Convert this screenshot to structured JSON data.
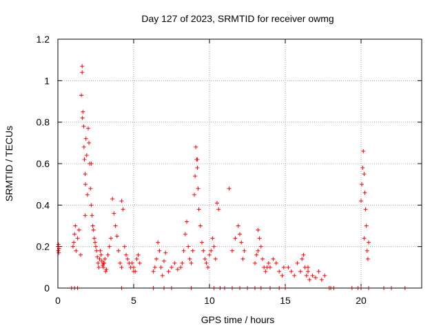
{
  "chart_data": {
    "type": "scatter",
    "title": "Day 127 of 2023, SRMTID for receiver owmg",
    "xlabel": "GPS time / hours",
    "ylabel": "SRMTID / TECUs",
    "xlim": [
      0,
      24
    ],
    "ylim": [
      0,
      1.2
    ],
    "xticks": [
      0,
      5,
      10,
      15,
      20
    ],
    "xtick_labels": [
      "0",
      "5",
      "10",
      "15",
      "20"
    ],
    "yticks": [
      0,
      0.2,
      0.4,
      0.6,
      0.8,
      1.0,
      1.2
    ],
    "ytick_labels": [
      "0",
      "0.2",
      "0.4",
      "0.6",
      "0.8",
      "1",
      "1.2"
    ],
    "grid": true,
    "marker": "+",
    "color": "#ff0000",
    "series": [
      {
        "name": "SRMTID",
        "x": [
          0.0,
          0.02,
          0.04,
          0.06,
          0.08,
          1.0,
          1.05,
          1.1,
          1.15,
          1.2,
          1.3,
          1.4,
          1.5,
          1.55,
          1.6,
          1.6,
          1.62,
          1.65,
          1.7,
          1.72,
          1.75,
          1.8,
          1.82,
          1.85,
          1.9,
          1.95,
          2.0,
          2.05,
          2.1,
          2.15,
          2.2,
          2.25,
          2.3,
          2.35,
          2.4,
          2.45,
          2.5,
          2.55,
          2.6,
          2.65,
          2.7,
          2.75,
          2.8,
          2.85,
          2.9,
          2.95,
          3.0,
          3.05,
          3.1,
          3.15,
          3.2,
          3.3,
          3.4,
          3.5,
          3.6,
          3.7,
          3.8,
          3.9,
          4.0,
          4.1,
          4.2,
          4.3,
          4.4,
          4.5,
          4.6,
          4.7,
          4.8,
          4.9,
          5.0,
          5.1,
          5.2,
          5.3,
          5.4,
          6.3,
          6.4,
          6.5,
          6.6,
          6.7,
          6.8,
          6.9,
          7.0,
          7.1,
          7.3,
          7.5,
          7.7,
          7.9,
          8.1,
          8.2,
          8.3,
          8.4,
          8.5,
          8.6,
          8.7,
          8.8,
          8.9,
          9.0,
          9.05,
          9.1,
          9.15,
          9.2,
          9.25,
          9.3,
          9.4,
          9.5,
          9.6,
          9.7,
          9.8,
          9.9,
          10.0,
          10.1,
          10.2,
          10.3,
          10.4,
          10.5,
          10.6,
          11.3,
          11.5,
          11.7,
          11.9,
          12.0,
          12.1,
          12.2,
          12.3,
          13.0,
          13.1,
          13.2,
          13.3,
          13.4,
          13.5,
          13.6,
          13.7,
          13.8,
          13.9,
          14.0,
          14.2,
          14.4,
          14.6,
          14.8,
          14.9,
          15.2,
          15.4,
          15.6,
          15.8,
          16.0,
          16.1,
          16.2,
          16.3,
          16.4,
          16.5,
          16.6,
          16.8,
          17.0,
          17.2,
          17.4,
          17.6,
          20.0,
          20.05,
          20.1,
          20.15,
          20.2,
          20.25,
          20.3,
          20.35,
          20.4,
          20.45,
          20.5,
          1.8,
          2.2,
          3.0,
          4.2,
          5.0,
          9.2,
          13.2,
          16.5,
          20.2,
          0.9,
          1.1,
          1.3,
          4.2,
          6.3,
          7.0,
          7.5,
          8.8,
          10.3,
          10.7,
          11.0,
          11.5,
          12.0,
          12.5,
          13.0,
          13.4,
          14.0,
          14.6,
          15.0,
          17.9,
          18.0,
          18.2,
          19.4,
          19.8,
          20.0,
          20.5,
          21.5,
          22.0,
          22.9
        ],
        "y": [
          0.2,
          0.18,
          0.21,
          0.17,
          0.19,
          0.2,
          0.22,
          0.26,
          0.3,
          0.18,
          0.24,
          0.28,
          0.16,
          0.93,
          1.07,
          1.04,
          0.82,
          0.85,
          0.78,
          0.68,
          0.62,
          0.55,
          0.5,
          0.72,
          0.64,
          0.45,
          0.77,
          0.7,
          0.6,
          0.48,
          0.4,
          0.35,
          0.3,
          0.28,
          0.24,
          0.22,
          0.2,
          0.18,
          0.15,
          0.12,
          0.1,
          0.14,
          0.18,
          0.16,
          0.13,
          0.11,
          0.1,
          0.12,
          0.14,
          0.08,
          0.09,
          0.16,
          0.2,
          0.24,
          0.43,
          0.36,
          0.3,
          0.25,
          0.18,
          0.12,
          0.42,
          0.38,
          0.2,
          0.16,
          0.14,
          0.12,
          0.1,
          0.12,
          0.1,
          0.08,
          0.14,
          0.16,
          0.12,
          0.08,
          0.1,
          0.14,
          0.22,
          0.18,
          0.1,
          0.06,
          0.13,
          0.17,
          0.08,
          0.1,
          0.12,
          0.09,
          0.1,
          0.12,
          0.18,
          0.26,
          0.32,
          0.2,
          0.14,
          0.12,
          0.18,
          0.45,
          0.54,
          0.68,
          0.62,
          0.58,
          0.48,
          0.38,
          0.3,
          0.22,
          0.18,
          0.14,
          0.12,
          0.1,
          0.16,
          0.18,
          0.24,
          0.2,
          0.14,
          0.41,
          0.38,
          0.48,
          0.18,
          0.24,
          0.3,
          0.26,
          0.22,
          0.14,
          0.18,
          0.12,
          0.16,
          0.18,
          0.24,
          0.2,
          0.14,
          0.1,
          0.08,
          0.1,
          0.12,
          0.1,
          0.14,
          0.12,
          0.08,
          0.06,
          0.1,
          0.1,
          0.08,
          0.06,
          0.12,
          0.08,
          0.14,
          0.16,
          0.1,
          0.06,
          0.08,
          0.04,
          0.06,
          0.05,
          0.08,
          0.04,
          0.06,
          0.42,
          0.5,
          0.58,
          0.66,
          0.55,
          0.46,
          0.38,
          0.3,
          0.18,
          0.14,
          0.22,
          0.35,
          0.6,
          0.12,
          0.1,
          0.08,
          0.62,
          0.28,
          0.1,
          0.24,
          0,
          0,
          0,
          0,
          0,
          0,
          0,
          0,
          0,
          0,
          0,
          0,
          0,
          0,
          0,
          0,
          0,
          0,
          0,
          0,
          0,
          0,
          0,
          0,
          0,
          0,
          0,
          0,
          0
        ]
      }
    ]
  }
}
